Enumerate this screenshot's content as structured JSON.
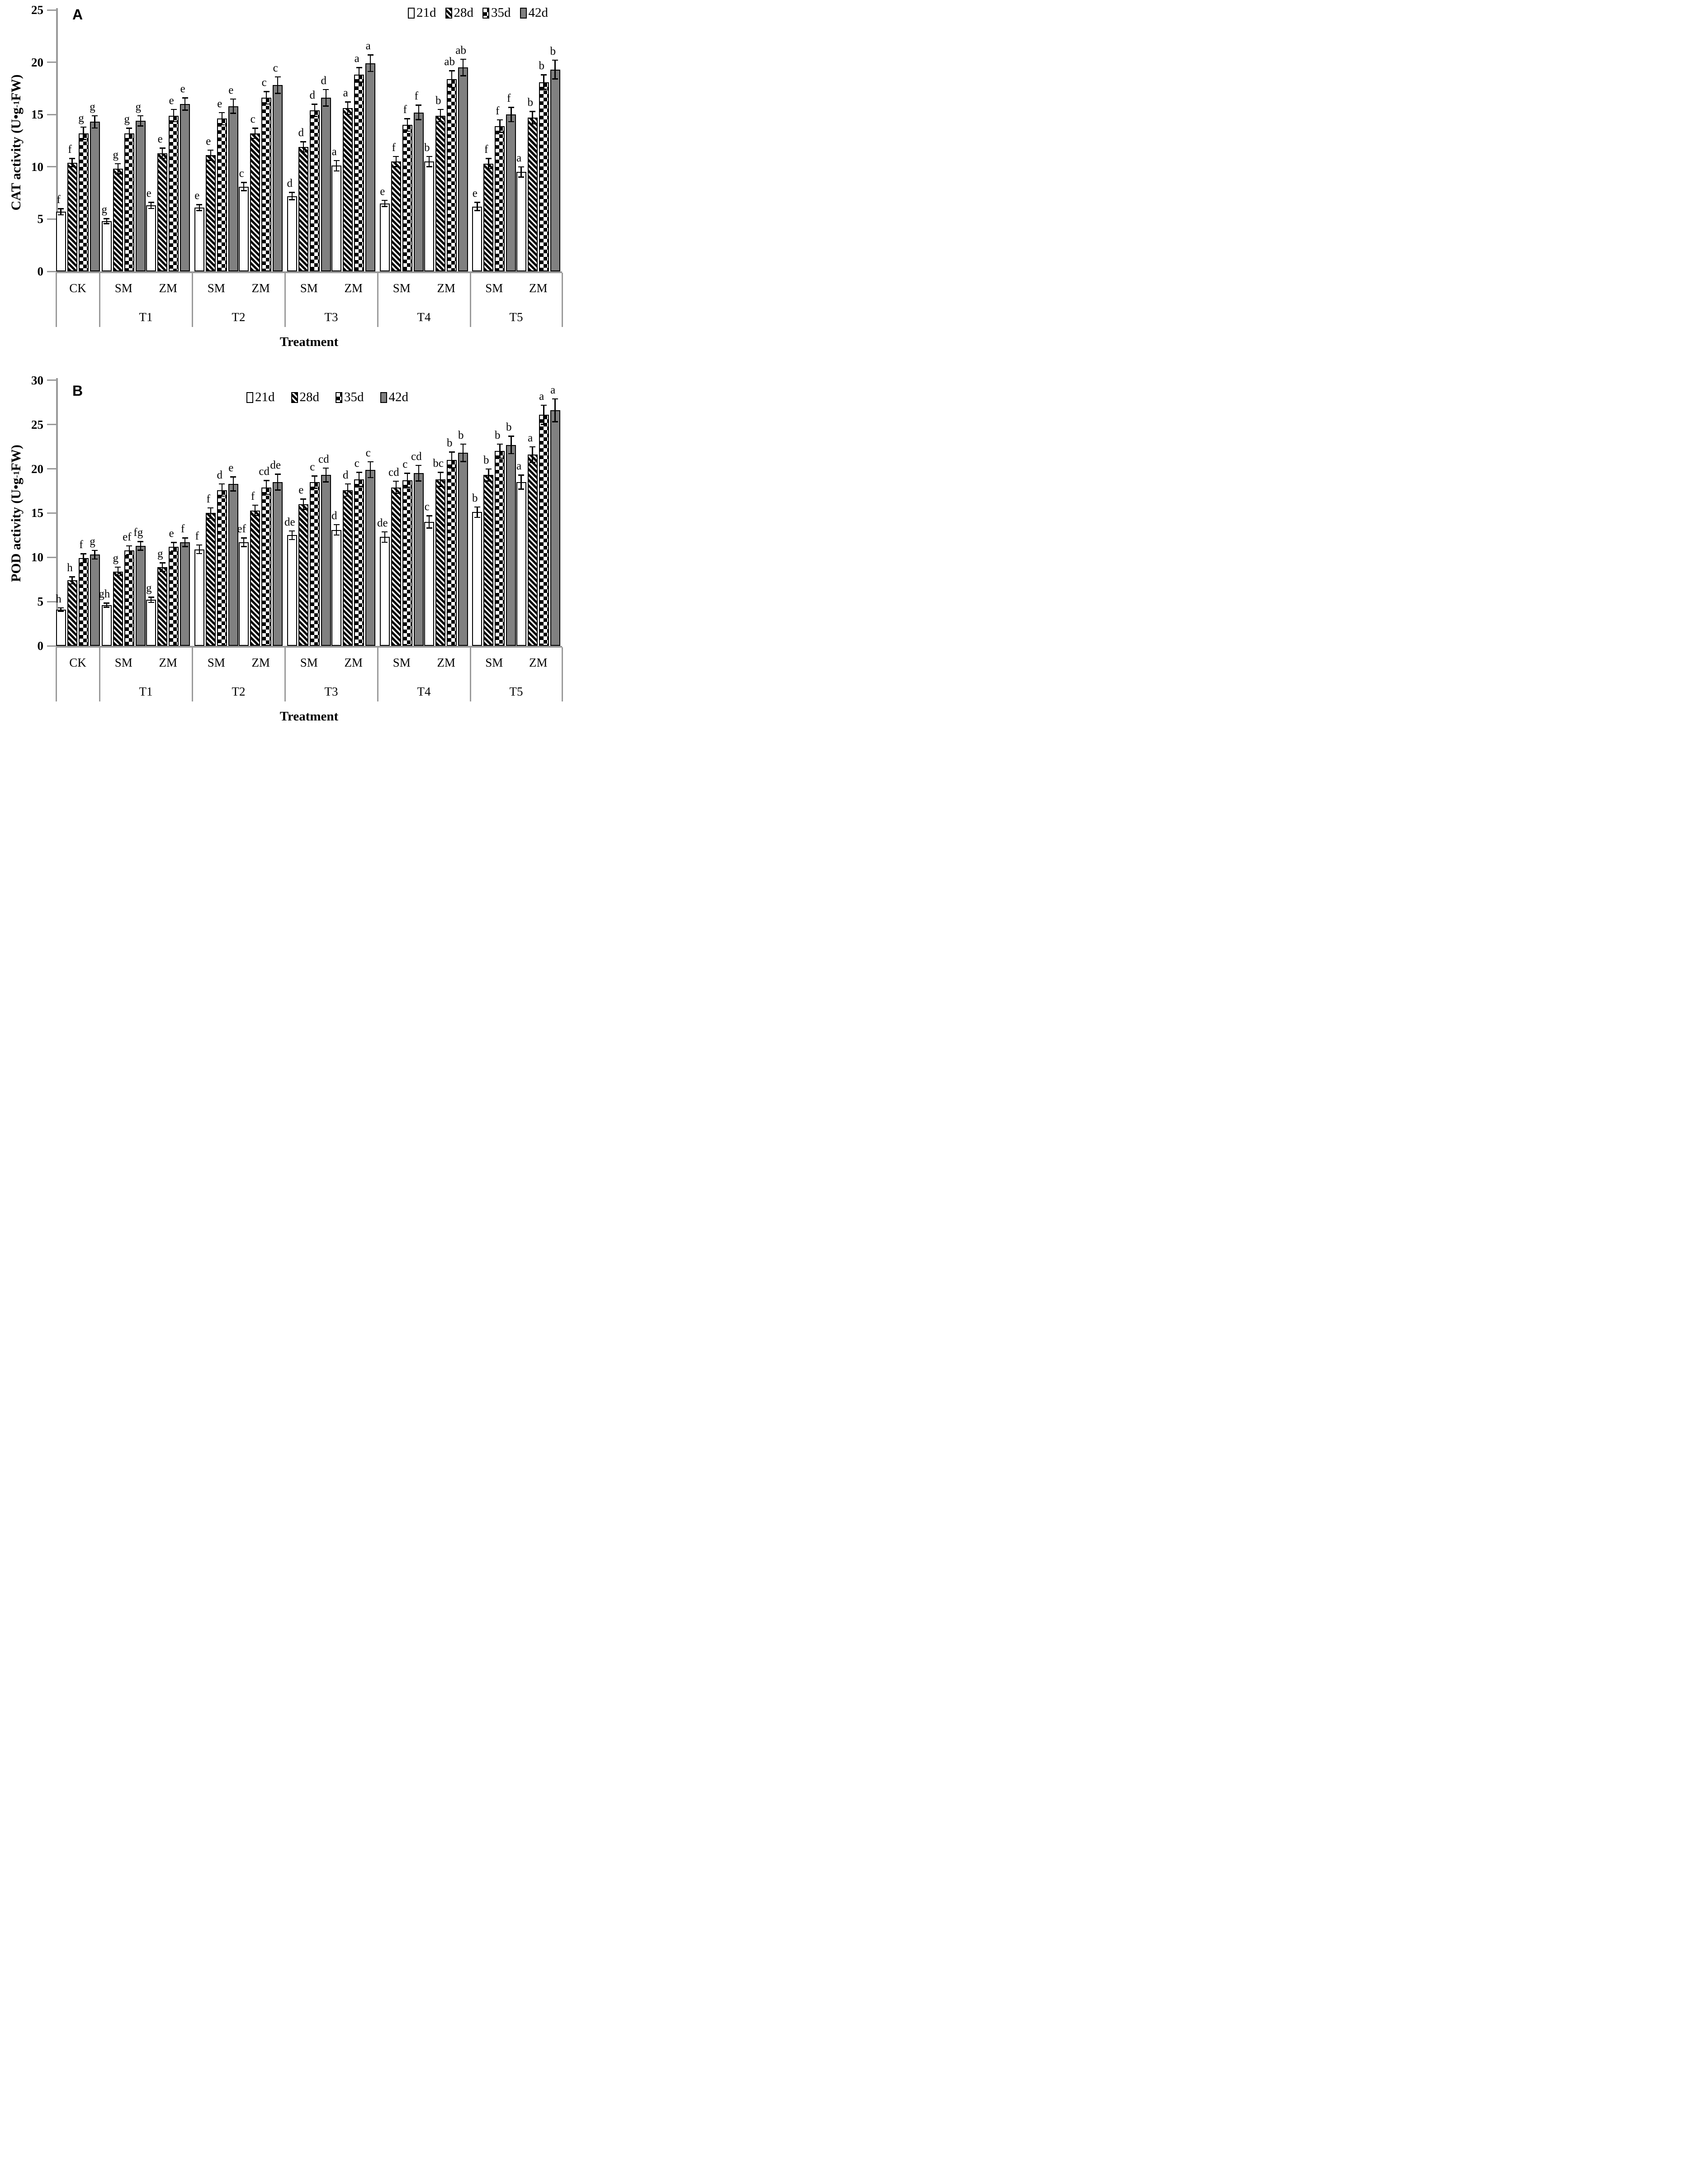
{
  "colors": {
    "bar_gray": "#808080",
    "axis_gray": "#9a9a9a",
    "black": "#000000",
    "background": "#ffffff"
  },
  "chart_data": [
    {
      "type": "bar",
      "panel_label": "A",
      "ylabel": "CAT activity (U•g-1 FW)",
      "ylabel_pre": "CAT activity (U•g",
      "ylabel_sup": "-1",
      "ylabel_post": " FW)",
      "xlabel": "Treatment",
      "ylim": [
        0,
        25
      ],
      "yticks": [
        0,
        5,
        10,
        15,
        20,
        25
      ],
      "grid": false,
      "legend_position": "top-right",
      "series_names": [
        "21d",
        "28d",
        "35d",
        "42d"
      ],
      "series_patterns": [
        "white",
        "diagonal-hatch",
        "checkerboard",
        "gray"
      ],
      "treatment_labels": [
        "T1",
        "T2",
        "T3",
        "T4",
        "T5"
      ],
      "groups": [
        {
          "section": "CK",
          "label": "CK",
          "values": [
            5.7,
            10.4,
            13.2,
            14.3
          ],
          "errors": [
            0.3,
            0.4,
            0.6,
            0.6
          ],
          "letters": [
            "f",
            "f",
            "g",
            "g"
          ]
        },
        {
          "section": "T1",
          "label": "SM",
          "values": [
            4.8,
            9.8,
            13.2,
            14.4
          ],
          "errors": [
            0.25,
            0.5,
            0.5,
            0.5
          ],
          "letters": [
            "g",
            "g",
            "g",
            "g"
          ]
        },
        {
          "section": "T1",
          "label": "ZM",
          "values": [
            6.3,
            11.3,
            14.9,
            16.0
          ],
          "errors": [
            0.3,
            0.5,
            0.6,
            0.6
          ],
          "letters": [
            "e",
            "e",
            "e",
            "e"
          ]
        },
        {
          "section": "T2",
          "label": "SM",
          "values": [
            6.1,
            11.1,
            14.6,
            15.8
          ],
          "errors": [
            0.3,
            0.5,
            0.6,
            0.7
          ],
          "letters": [
            "e",
            "e",
            "e",
            "e"
          ]
        },
        {
          "section": "T2",
          "label": "ZM",
          "values": [
            8.1,
            13.2,
            16.6,
            17.8
          ],
          "errors": [
            0.4,
            0.5,
            0.6,
            0.8
          ],
          "letters": [
            "c",
            "c",
            "c",
            "c"
          ]
        },
        {
          "section": "T3",
          "label": "SM",
          "values": [
            7.2,
            11.9,
            15.4,
            16.6
          ],
          "errors": [
            0.35,
            0.5,
            0.6,
            0.8
          ],
          "letters": [
            "d",
            "d",
            "d",
            "d"
          ]
        },
        {
          "section": "T3",
          "label": "ZM",
          "values": [
            10.1,
            15.6,
            18.8,
            19.9
          ],
          "errors": [
            0.5,
            0.6,
            0.7,
            0.8
          ],
          "letters": [
            "a",
            "a",
            "a",
            "a"
          ]
        },
        {
          "section": "T4",
          "label": "SM",
          "values": [
            6.5,
            10.5,
            14.0,
            15.2
          ],
          "errors": [
            0.3,
            0.5,
            0.6,
            0.7
          ],
          "letters": [
            "e",
            "f",
            "f",
            "f"
          ]
        },
        {
          "section": "T4",
          "label": "ZM",
          "values": [
            10.5,
            14.9,
            18.4,
            19.5
          ],
          "errors": [
            0.5,
            0.6,
            0.8,
            0.8
          ],
          "letters": [
            "b",
            "b",
            "ab",
            "ab"
          ]
        },
        {
          "section": "T5",
          "label": "SM",
          "values": [
            6.2,
            10.3,
            13.9,
            15.0
          ],
          "errors": [
            0.4,
            0.5,
            0.6,
            0.7
          ],
          "letters": [
            "e",
            "f",
            "f",
            "f"
          ]
        },
        {
          "section": "T5",
          "label": "ZM",
          "values": [
            9.5,
            14.7,
            18.1,
            19.3
          ],
          "errors": [
            0.5,
            0.6,
            0.7,
            0.9
          ],
          "letters": [
            "a",
            "b",
            "b",
            "b"
          ]
        }
      ]
    },
    {
      "type": "bar",
      "panel_label": "B",
      "ylabel": "POD activity (U•g-1 FW)",
      "ylabel_pre": "POD activity (U•g",
      "ylabel_sup": "-1",
      "ylabel_post": " FW)",
      "xlabel": "Treatment",
      "ylim": [
        0,
        30
      ],
      "yticks": [
        0,
        5,
        10,
        15,
        20,
        25,
        30
      ],
      "grid": false,
      "legend_position": "top-center",
      "series_names": [
        "21d",
        "28d",
        "35d",
        "42d"
      ],
      "series_patterns": [
        "white",
        "diagonal-hatch",
        "checkerboard",
        "gray"
      ],
      "treatment_labels": [
        "T1",
        "T2",
        "T3",
        "T4",
        "T5"
      ],
      "groups": [
        {
          "section": "CK",
          "label": "CK",
          "values": [
            4.1,
            7.4,
            9.9,
            10.3
          ],
          "errors": [
            0.2,
            0.4,
            0.5,
            0.5
          ],
          "letters": [
            "h",
            "h",
            "f",
            "g"
          ]
        },
        {
          "section": "T1",
          "label": "SM",
          "values": [
            4.6,
            8.4,
            10.8,
            11.3
          ],
          "errors": [
            0.25,
            0.5,
            0.5,
            0.5
          ],
          "letters": [
            "gh",
            "g",
            "ef",
            "fg"
          ]
        },
        {
          "section": "T1",
          "label": "ZM",
          "values": [
            5.2,
            8.9,
            11.2,
            11.7
          ],
          "errors": [
            0.3,
            0.5,
            0.5,
            0.5
          ],
          "letters": [
            "g",
            "g",
            "e",
            "f"
          ]
        },
        {
          "section": "T2",
          "label": "SM",
          "values": [
            10.9,
            15.0,
            17.6,
            18.3
          ],
          "errors": [
            0.5,
            0.6,
            0.7,
            0.8
          ],
          "letters": [
            "f",
            "f",
            "d",
            "e"
          ]
        },
        {
          "section": "T2",
          "label": "ZM",
          "values": [
            11.7,
            15.3,
            17.9,
            18.5
          ],
          "errors": [
            0.5,
            0.6,
            0.8,
            0.9
          ],
          "letters": [
            "ef",
            "f",
            "cd",
            "de"
          ]
        },
        {
          "section": "T3",
          "label": "SM",
          "values": [
            12.5,
            16.0,
            18.5,
            19.3
          ],
          "errors": [
            0.5,
            0.6,
            0.7,
            0.8
          ],
          "letters": [
            "de",
            "e",
            "c",
            "cd"
          ]
        },
        {
          "section": "T3",
          "label": "ZM",
          "values": [
            13.1,
            17.6,
            18.8,
            19.9
          ],
          "errors": [
            0.6,
            0.7,
            0.8,
            0.9
          ],
          "letters": [
            "d",
            "d",
            "c",
            "c"
          ]
        },
        {
          "section": "T4",
          "label": "SM",
          "values": [
            12.3,
            17.9,
            18.7,
            19.5
          ],
          "errors": [
            0.6,
            0.7,
            0.8,
            0.9
          ],
          "letters": [
            "de",
            "cd",
            "c",
            "cd"
          ]
        },
        {
          "section": "T4",
          "label": "ZM",
          "values": [
            14.0,
            18.8,
            21.0,
            21.8
          ],
          "errors": [
            0.7,
            0.8,
            0.9,
            1.0
          ],
          "letters": [
            "c",
            "bc",
            "b",
            "b"
          ]
        },
        {
          "section": "T5",
          "label": "SM",
          "values": [
            15.1,
            19.3,
            22.0,
            22.7
          ],
          "errors": [
            0.6,
            0.7,
            0.8,
            1.0
          ],
          "letters": [
            "b",
            "b",
            "b",
            "b"
          ]
        },
        {
          "section": "T5",
          "label": "ZM",
          "values": [
            18.5,
            21.6,
            26.1,
            26.6
          ],
          "errors": [
            0.8,
            0.9,
            1.1,
            1.3
          ],
          "letters": [
            "a",
            "a",
            "a",
            "a"
          ]
        }
      ]
    }
  ]
}
